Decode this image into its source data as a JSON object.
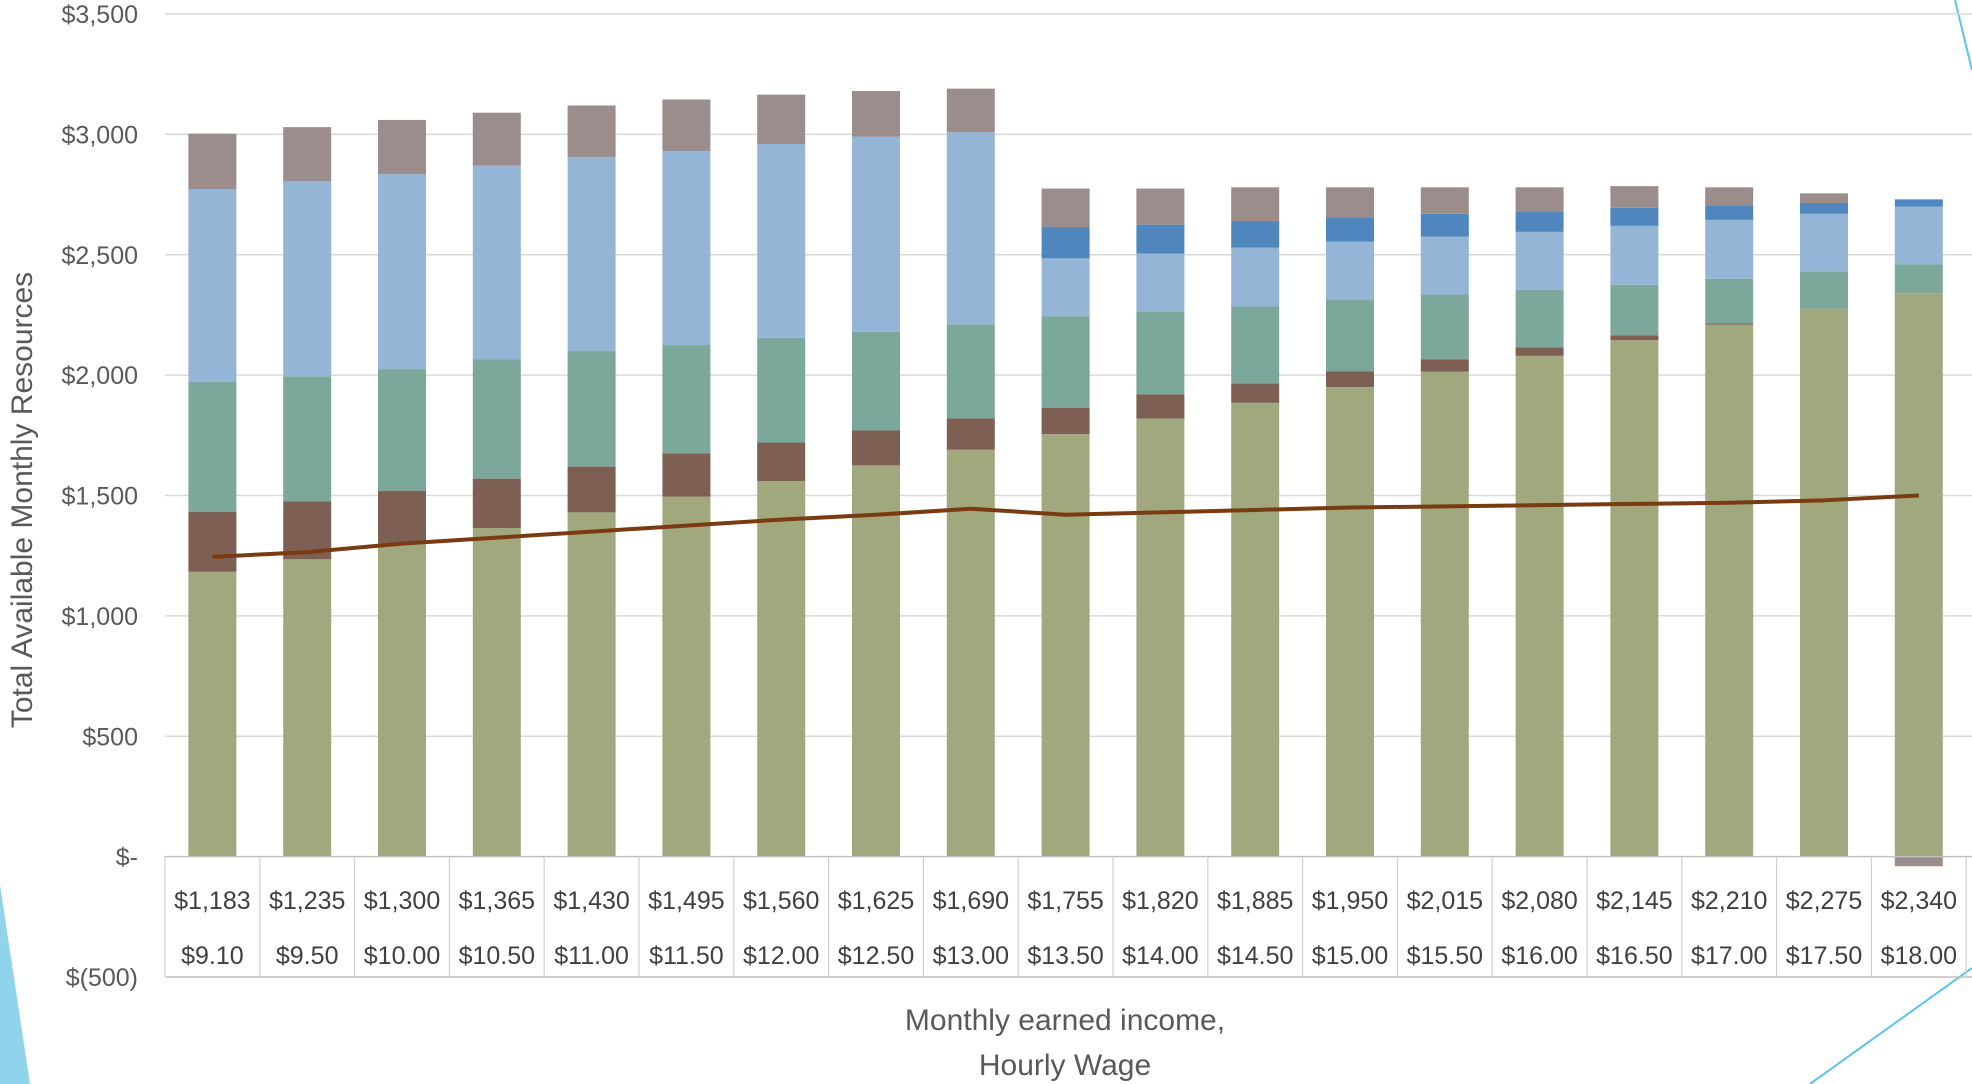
{
  "chart_data": {
    "type": "bar",
    "stacked": true,
    "title": "",
    "ylabel": "Total Available Monthly Resources",
    "xlabel_lines": [
      "Monthly earned income,",
      "Hourly Wage"
    ],
    "ylim": [
      -500,
      3500
    ],
    "yticks": [
      {
        "value": 3500,
        "label": "$3,500"
      },
      {
        "value": 3000,
        "label": "$3,000"
      },
      {
        "value": 2500,
        "label": "$2,500"
      },
      {
        "value": 2000,
        "label": "$2,000"
      },
      {
        "value": 1500,
        "label": "$1,500"
      },
      {
        "value": 1000,
        "label": "$1,000"
      },
      {
        "value": 500,
        "label": "$500"
      },
      {
        "value": 0,
        "label": "$-"
      },
      {
        "value": -500,
        "label": "$(500)"
      }
    ],
    "categories": [
      "$1,183",
      "$1,235",
      "$1,300",
      "$1,365",
      "$1,430",
      "$1,495",
      "$1,560",
      "$1,625",
      "$1,690",
      "$1,755",
      "$1,820",
      "$1,885",
      "$1,950",
      "$2,015",
      "$2,080",
      "$2,145",
      "$2,210",
      "$2,275",
      "$2,340"
    ],
    "categories_row2": [
      "$9.10",
      "$9.50",
      "$10.00",
      "$10.50",
      "$11.00",
      "$11.50",
      "$12.00",
      "$12.50",
      "$13.00",
      "$13.50",
      "$14.00",
      "$14.50",
      "$15.00",
      "$15.50",
      "$16.00",
      "$16.50",
      "$17.00",
      "$17.50",
      "$18.00"
    ],
    "series": [
      {
        "color": "#a2a87e",
        "values": [
          1183,
          1235,
          1300,
          1365,
          1430,
          1495,
          1560,
          1625,
          1690,
          1755,
          1820,
          1885,
          1950,
          2015,
          2080,
          2145,
          2210,
          2275,
          2340
        ]
      },
      {
        "color": "#7d5f54",
        "values": [
          250,
          240,
          220,
          205,
          190,
          180,
          160,
          145,
          130,
          110,
          100,
          80,
          65,
          50,
          35,
          20,
          5,
          0,
          0
        ]
      },
      {
        "color": "#7ba89a",
        "values": [
          540,
          520,
          505,
          495,
          480,
          450,
          435,
          410,
          390,
          380,
          345,
          320,
          300,
          270,
          240,
          210,
          185,
          155,
          120
        ]
      },
      {
        "color": "#94b5d5",
        "values": [
          800,
          810,
          810,
          805,
          805,
          805,
          805,
          810,
          800,
          240,
          240,
          245,
          240,
          240,
          240,
          245,
          245,
          240,
          240
        ]
      },
      {
        "color": "#4e86bd",
        "values": [
          0,
          0,
          0,
          0,
          0,
          0,
          0,
          0,
          0,
          130,
          120,
          110,
          100,
          95,
          85,
          75,
          60,
          45,
          30
        ]
      },
      {
        "color": "#9a8d8b",
        "values": [
          230,
          225,
          225,
          220,
          215,
          215,
          205,
          190,
          180,
          160,
          150,
          140,
          125,
          110,
          100,
          90,
          75,
          40,
          -40
        ]
      }
    ],
    "line": {
      "color": "#7a3b12",
      "values": [
        1245,
        1265,
        1300,
        1325,
        1350,
        1375,
        1400,
        1420,
        1445,
        1420,
        1430,
        1440,
        1450,
        1455,
        1460,
        1465,
        1470,
        1480,
        1500
      ]
    }
  }
}
